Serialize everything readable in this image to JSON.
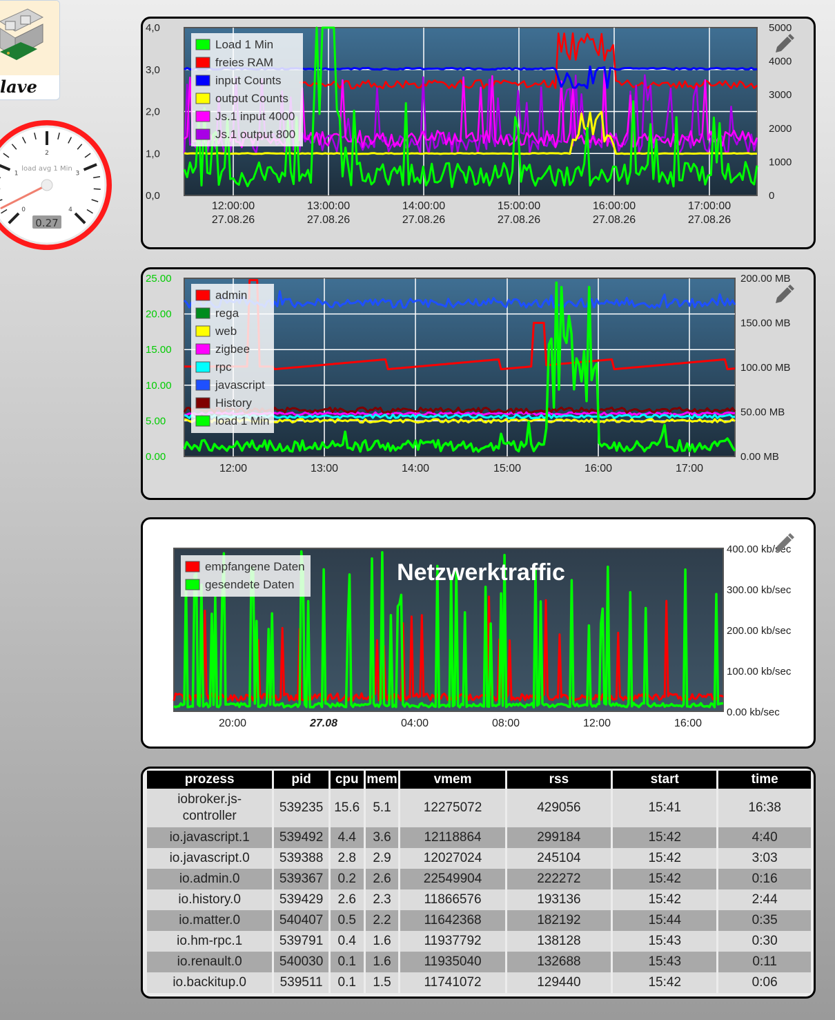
{
  "sidebar": {
    "tile_label": "lave",
    "gauge": {
      "label": "load avg 1 Min",
      "value": "0.27",
      "min": 0,
      "max": 4,
      "numbers": [
        "0",
        "1",
        "2",
        "3",
        "4"
      ]
    }
  },
  "chart1": {
    "edit_icon": "pencil-icon",
    "legend": [
      "Load 1 Min",
      "freies RAM",
      "input Counts",
      "output Counts",
      "Js.1 input 4000",
      "Js.1 output 800"
    ],
    "colors": [
      "#00ff00",
      "#ff0000",
      "#0000ff",
      "#ffff00",
      "#ff00ff",
      "#a800e6"
    ],
    "y_left_ticks": [
      "4,0",
      "3,0",
      "2,0",
      "1,0",
      "0,0"
    ],
    "y_right_ticks": [
      "5000",
      "4000",
      "3000",
      "2000",
      "1000",
      "0"
    ],
    "x_ticks": [
      {
        "time": "12:00:00",
        "date": "27.08.26"
      },
      {
        "time": "13:00:00",
        "date": "27.08.26"
      },
      {
        "time": "14:00:00",
        "date": "27.08.26"
      },
      {
        "time": "15:00:00",
        "date": "27.08.26"
      },
      {
        "time": "16:00:00",
        "date": "27.08.26"
      },
      {
        "time": "17:00:00",
        "date": "27.08.26"
      }
    ]
  },
  "chart2": {
    "edit_icon": "pencil-icon",
    "legend": [
      "admin",
      "rega",
      "web",
      "zigbee",
      "rpc",
      "javascript",
      "History",
      "load 1 Min"
    ],
    "colors": [
      "#ff0000",
      "#008c1e",
      "#ffff00",
      "#ff00ff",
      "#00ffff",
      "#1e50ff",
      "#800000",
      "#00ff00"
    ],
    "y_left_ticks": [
      "25.00",
      "20.00",
      "15.00",
      "10.00",
      "5.00",
      "0.00"
    ],
    "y_right_ticks": [
      "200.00 MB",
      "150.00 MB",
      "100.00 MB",
      "50.00 MB",
      "0.00 MB"
    ],
    "x_ticks": [
      "12:00",
      "13:00",
      "14:00",
      "15:00",
      "16:00",
      "17:00"
    ]
  },
  "chart3": {
    "title": "Netzwerktraffic",
    "edit_icon": "pencil-icon",
    "legend": [
      "empfangene Daten",
      "gesendete Daten"
    ],
    "colors": [
      "#ff0000",
      "#00ff00"
    ],
    "y_right_ticks": [
      "400.00 kb/sec",
      "300.00 kb/sec",
      "200.00 kb/sec",
      "100.00 kb/sec",
      "0.00 kb/sec"
    ],
    "x_ticks": [
      "20:00",
      "27.08",
      "04:00",
      "08:00",
      "12:00",
      "16:00"
    ]
  },
  "process_table": {
    "columns": [
      "prozess",
      "pid",
      "cpu",
      "mem",
      "vmem",
      "rss",
      "start",
      "time"
    ],
    "rows": [
      [
        "iobroker.js-controller",
        "539235",
        "15.6",
        "5.1",
        "12275072",
        "429056",
        "15:41",
        "16:38"
      ],
      [
        "io.javascript.1",
        "539492",
        "4.4",
        "3.6",
        "12118864",
        "299184",
        "15:42",
        "4:40"
      ],
      [
        "io.javascript.0",
        "539388",
        "2.8",
        "2.9",
        "12027024",
        "245104",
        "15:42",
        "3:03"
      ],
      [
        "io.admin.0",
        "539367",
        "0.2",
        "2.6",
        "22549904",
        "222272",
        "15:42",
        "0:16"
      ],
      [
        "io.history.0",
        "539429",
        "2.6",
        "2.3",
        "11866576",
        "193136",
        "15:42",
        "2:44"
      ],
      [
        "io.matter.0",
        "540407",
        "0.5",
        "2.2",
        "11642368",
        "182192",
        "15:44",
        "0:35"
      ],
      [
        "io.hm-rpc.1",
        "539791",
        "0.4",
        "1.6",
        "11937792",
        "138128",
        "15:43",
        "0:30"
      ],
      [
        "io.renault.0",
        "540030",
        "0.1",
        "1.6",
        "11935040",
        "132688",
        "15:43",
        "0:11"
      ],
      [
        "io.backitup.0",
        "539511",
        "0.1",
        "1.5",
        "11741072",
        "129440",
        "15:42",
        "0:06"
      ]
    ]
  }
}
